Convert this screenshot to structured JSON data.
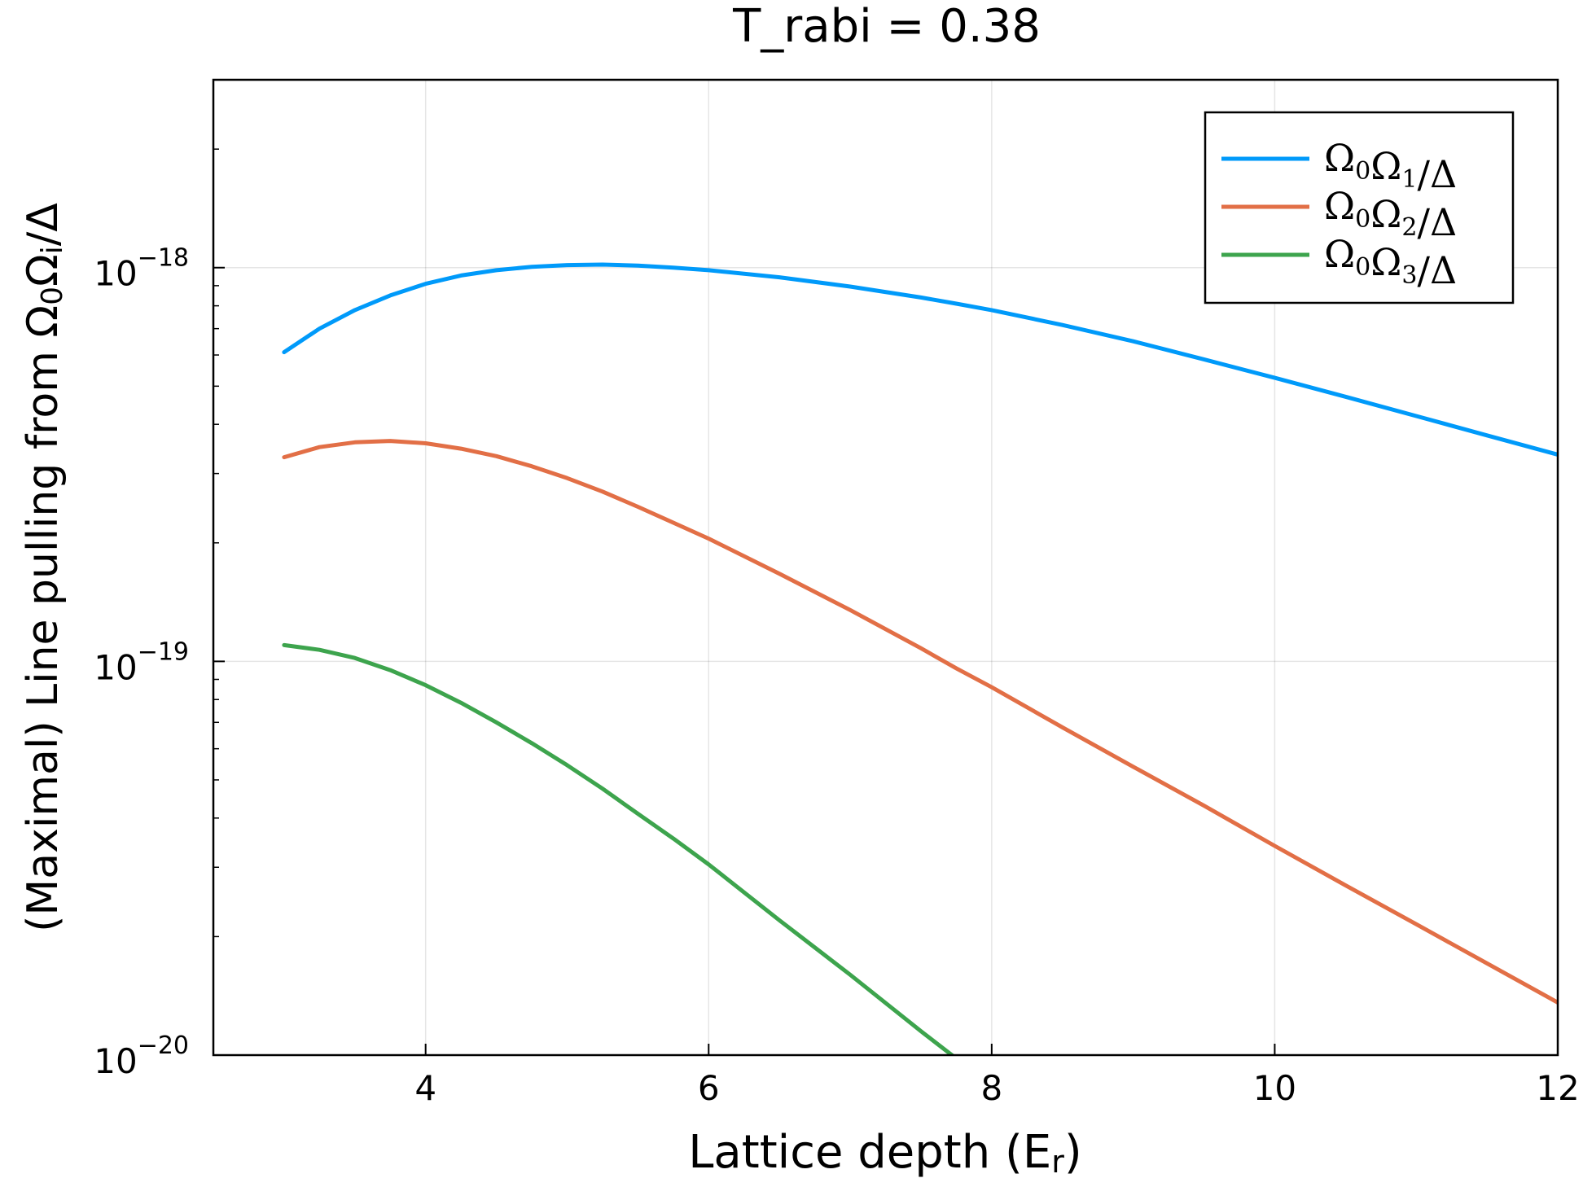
{
  "chart_data": {
    "type": "line",
    "title": "T_rabi = 0.38",
    "xlabel": "Lattice depth (E",
    "xlabel_sub": "r",
    "xlabel_end": ")",
    "ylabel": "(Maximal) Line pulling from Ω",
    "ylabel_sub0": "0",
    "ylabel_mid": "Ω",
    "ylabel_subi": "i",
    "ylabel_end": "/Δ",
    "xlim": [
      2.5,
      12
    ],
    "ylim": [
      1e-20,
      3e-18
    ],
    "yscale": "log",
    "grid": true,
    "legend_position": "top-right",
    "x_ticks": [
      {
        "value": 4,
        "label": "4"
      },
      {
        "value": 6,
        "label": "6"
      },
      {
        "value": 8,
        "label": "8"
      },
      {
        "value": 10,
        "label": "10"
      },
      {
        "value": 12,
        "label": "12"
      }
    ],
    "y_ticks": [
      {
        "value": 1e-20,
        "base": "10",
        "exp": "−20"
      },
      {
        "value": 1e-19,
        "base": "10",
        "exp": "−19"
      },
      {
        "value": 1e-18,
        "base": "10",
        "exp": "−18"
      }
    ],
    "x": [
      3.0,
      3.25,
      3.5,
      3.75,
      4.0,
      4.25,
      4.5,
      4.75,
      5.0,
      5.25,
      5.5,
      5.75,
      6.0,
      6.5,
      7.0,
      7.5,
      7.75,
      8.0,
      8.5,
      9.0,
      9.5,
      10.0,
      10.5,
      11.0,
      11.5,
      12.0
    ],
    "series": [
      {
        "name": "Ω0Ω1/Δ",
        "legend_main": "Ω",
        "legend_parts": [
          [
            "Ω",
            "0"
          ],
          [
            "Ω",
            "1"
          ]
        ],
        "legend_tail": "/Δ",
        "color": "#009afa",
        "values": [
          6.1e-19,
          7e-19,
          7.8e-19,
          8.5e-19,
          9.1e-19,
          9.55e-19,
          9.85e-19,
          1.005e-18,
          1.015e-18,
          1.018e-18,
          1.012e-18,
          1e-18,
          9.85e-19,
          9.45e-19,
          8.95e-19,
          8.4e-19,
          8.1e-19,
          7.8e-19,
          7.15e-19,
          6.5e-19,
          5.85e-19,
          5.25e-19,
          4.7e-19,
          4.2e-19,
          3.75e-19,
          3.35e-19
        ]
      },
      {
        "name": "Ω0Ω2/Δ",
        "legend_parts": [
          [
            "Ω",
            "0"
          ],
          [
            "Ω",
            "2"
          ]
        ],
        "legend_tail": "/Δ",
        "color": "#e26f46",
        "values": [
          3.3e-19,
          3.5e-19,
          3.6e-19,
          3.63e-19,
          3.58e-19,
          3.47e-19,
          3.32e-19,
          3.13e-19,
          2.92e-19,
          2.7e-19,
          2.47e-19,
          2.25e-19,
          2.05e-19,
          1.67e-19,
          1.35e-19,
          1.08e-19,
          9.6e-20,
          8.6e-20,
          6.8e-20,
          5.4e-20,
          4.3e-20,
          3.4e-20,
          2.7e-20,
          2.15e-20,
          1.71e-20,
          1.36e-20
        ]
      },
      {
        "name": "Ω0Ω3/Δ",
        "legend_parts": [
          [
            "Ω",
            "0"
          ],
          [
            "Ω",
            "3"
          ]
        ],
        "legend_tail": "/Δ",
        "color": "#3da44d",
        "values": [
          1.1e-19,
          1.07e-19,
          1.02e-19,
          9.5e-20,
          8.7e-20,
          7.85e-20,
          7e-20,
          6.2e-20,
          5.45e-20,
          4.75e-20,
          4.1e-20,
          3.55e-20,
          3.05e-20,
          2.2e-20,
          1.6e-20,
          1.15e-20,
          9.8e-21,
          null,
          null,
          null,
          null,
          null,
          null,
          null,
          null,
          null
        ]
      }
    ]
  }
}
